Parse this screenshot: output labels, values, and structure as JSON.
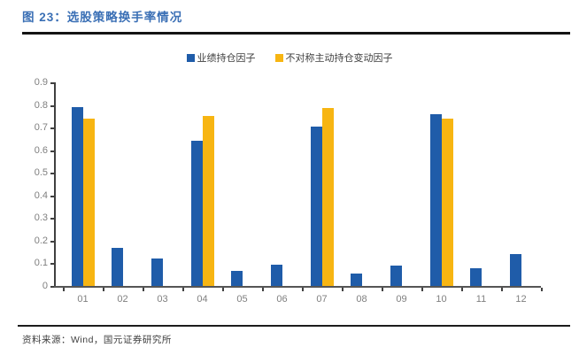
{
  "header": {
    "title": "图 23：选股策略换手率情况"
  },
  "footer": {
    "source": "资料来源：Wind，国元证券研究所"
  },
  "colors": {
    "title_blue": "#3A6FB5",
    "series_blue": "#1F5CA9",
    "series_yellow": "#F7B512",
    "axis": "#404040",
    "tick_label": "#7F7F7F"
  },
  "chart_data": {
    "type": "bar",
    "title": "选股策略换手率情况",
    "categories": [
      "01",
      "02",
      "03",
      "04",
      "05",
      "06",
      "07",
      "08",
      "09",
      "10",
      "11",
      "12"
    ],
    "series": [
      {
        "name": "业绩持仓因子",
        "color": "#1F5CA9",
        "values": [
          0.79,
          0.17,
          0.12,
          0.64,
          0.065,
          0.095,
          0.705,
          0.055,
          0.09,
          0.76,
          0.08,
          0.14
        ]
      },
      {
        "name": "不对称主动持仓变动因子",
        "color": "#F7B512",
        "values": [
          0.74,
          0,
          0,
          0.75,
          0,
          0,
          0.785,
          0,
          0,
          0.74,
          0,
          0
        ]
      }
    ],
    "xlabel": "",
    "ylabel": "",
    "ylim": [
      0,
      0.9
    ],
    "ytick_step": 0.1,
    "grid": false,
    "legend_position": "top-center"
  }
}
